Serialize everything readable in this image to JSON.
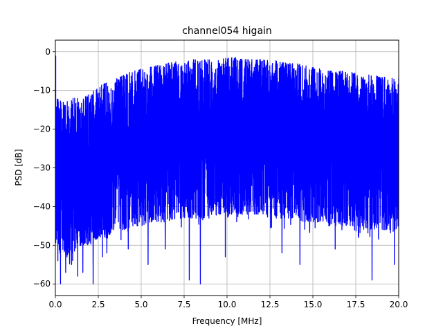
{
  "chart_data": {
    "type": "line",
    "title": "channel054 higain",
    "xlabel": "Frequency [MHz]",
    "ylabel": "PSD [dB]",
    "xlim": [
      0,
      20
    ],
    "ylim": [
      -63,
      3
    ],
    "grid": true,
    "legend": "none",
    "xticks": [
      0,
      2.5,
      5,
      7.5,
      10,
      12.5,
      15,
      17.5,
      20
    ],
    "xtick_labels": [
      "0.0",
      "2.5",
      "5.0",
      "7.5",
      "10.0",
      "12.5",
      "15.0",
      "17.5",
      "20.0"
    ],
    "yticks": [
      0,
      -10,
      -20,
      -30,
      -40,
      -50,
      -60
    ],
    "ytick_labels": [
      "0",
      "−10",
      "−20",
      "−30",
      "−40",
      "−50",
      "−60"
    ],
    "series": [
      {
        "color": "#0000ff",
        "upper_envelope": {
          "x": [
            0,
            0.5,
            1,
            1.5,
            2,
            2.5,
            3,
            3.5,
            4,
            4.5,
            5,
            5.5,
            6,
            6.5,
            7,
            7.5,
            8,
            8.5,
            9,
            9.5,
            10,
            10.5,
            11,
            11.5,
            12,
            12.5,
            13,
            13.5,
            14,
            14.5,
            15,
            15.5,
            16,
            16.5,
            17,
            17.5,
            18,
            18.5,
            19,
            19.5,
            20
          ],
          "y": [
            -12,
            -13,
            -12,
            -12,
            -11,
            -9,
            -8,
            -7,
            -6,
            -5,
            -4.5,
            -4,
            -3.5,
            -3,
            -2.5,
            -2.5,
            -2,
            -2,
            -2,
            -2,
            -1.5,
            -1.5,
            -2,
            -2,
            -2,
            -2,
            -2.5,
            -3,
            -3,
            -3.5,
            -4,
            -4.5,
            -5,
            -5,
            -5,
            -5.5,
            -6,
            -6,
            -6.5,
            -6.5,
            -6.5
          ]
        },
        "lower_envelope": {
          "x": [
            0,
            0.5,
            1,
            1.5,
            2,
            2.5,
            3,
            3.5,
            4,
            4.5,
            5,
            5.5,
            6,
            6.5,
            7,
            7.5,
            8,
            8.5,
            9,
            9.5,
            10,
            10.5,
            11,
            11.5,
            12,
            12.5,
            13,
            13.5,
            14,
            14.5,
            15,
            15.5,
            16,
            16.5,
            17,
            17.5,
            18,
            18.5,
            19,
            19.5,
            20
          ],
          "y": [
            -50,
            -52,
            -52,
            -50,
            -50,
            -48,
            -48,
            -46,
            -46,
            -45,
            -45,
            -44,
            -44,
            -44,
            -43,
            -43,
            -43,
            -43,
            -43,
            -42,
            -42,
            -42,
            -42,
            -42,
            -42,
            -43,
            -43,
            -43,
            -43,
            -44,
            -44,
            -44,
            -45,
            -45,
            -45,
            -45,
            -46,
            -46,
            -46,
            -46,
            -46
          ]
        },
        "deep_dips": [
          {
            "x": 0.15,
            "y": -54
          },
          {
            "x": 0.3,
            "y": -60
          },
          {
            "x": 0.6,
            "y": -57
          },
          {
            "x": 0.95,
            "y": -55
          },
          {
            "x": 1.3,
            "y": -58
          },
          {
            "x": 1.6,
            "y": -57
          },
          {
            "x": 2.2,
            "y": -60
          },
          {
            "x": 2.75,
            "y": -53
          },
          {
            "x": 3.0,
            "y": -52
          },
          {
            "x": 4.25,
            "y": -51
          },
          {
            "x": 5.4,
            "y": -55
          },
          {
            "x": 6.4,
            "y": -51
          },
          {
            "x": 7.8,
            "y": -59
          },
          {
            "x": 8.45,
            "y": -60
          },
          {
            "x": 9.9,
            "y": -53
          },
          {
            "x": 13.2,
            "y": -52
          },
          {
            "x": 14.25,
            "y": -55
          },
          {
            "x": 16.3,
            "y": -51
          },
          {
            "x": 18.45,
            "y": -59
          },
          {
            "x": 19.75,
            "y": -55
          }
        ]
      }
    ]
  }
}
